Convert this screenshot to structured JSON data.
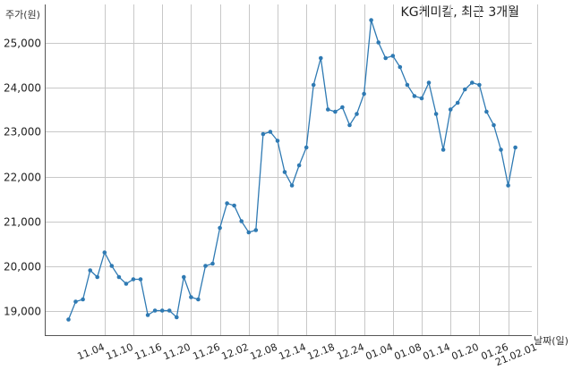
{
  "chart_data": {
    "type": "line",
    "title": "KG케미칼, 최근 3개월",
    "ylabel": "주가(원)",
    "xlabel": "날짜(일)",
    "ylim": [
      18450,
      25850
    ],
    "yticks": [
      19000,
      20000,
      21000,
      22000,
      23000,
      24000,
      25000
    ],
    "ytick_labels": [
      "19,000",
      "20,000",
      "21,000",
      "22,000",
      "23,000",
      "24,000",
      "25,000"
    ],
    "xtick_labels": [
      "11.04",
      "11.10",
      "11.16",
      "11.20",
      "11.26",
      "12.02",
      "12.08",
      "12.14",
      "12.18",
      "12.24",
      "01.04",
      "01.08",
      "01.14",
      "01.20",
      "01.26",
      "21.02.01"
    ],
    "xtick_index": [
      5,
      9,
      13,
      17,
      21,
      25,
      29,
      33,
      37,
      41,
      45,
      49,
      53,
      57,
      61,
      65
    ],
    "grid": true,
    "series": [
      {
        "color": "#2f7ab3",
        "values": [
          18800,
          19200,
          19250,
          19900,
          19750,
          20300,
          20000,
          19750,
          19600,
          19700,
          19700,
          18900,
          19000,
          19000,
          19000,
          18850,
          19750,
          19300,
          19250,
          20000,
          20050,
          20850,
          21400,
          21350,
          21000,
          20750,
          20800,
          22950,
          23000,
          22800,
          22100,
          21800,
          22250,
          22650,
          24050,
          24650,
          23500,
          23450,
          23550,
          23150,
          23400,
          23850,
          25500,
          25000,
          24650,
          24700,
          24450,
          24050,
          23800,
          23750,
          24100,
          23400,
          22600,
          23500,
          23650,
          23950,
          24100,
          24050,
          23450,
          23150,
          22600,
          21800,
          22650
        ]
      }
    ]
  }
}
